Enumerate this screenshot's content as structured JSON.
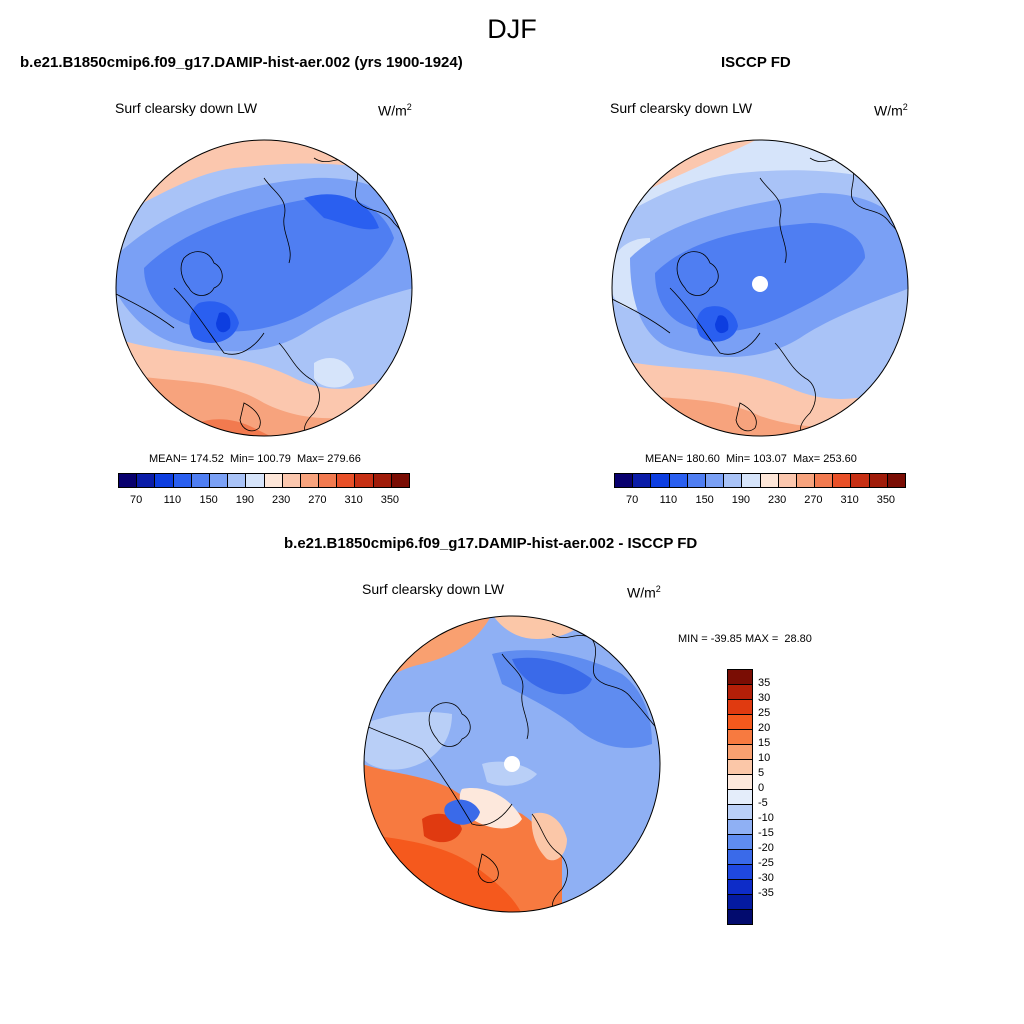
{
  "figure": {
    "title": "DJF"
  },
  "panels": [
    {
      "id": "model",
      "header": "b.e21.B1850cmip6.f09_g17.DAMIP-hist-aer.002 (yrs 1900-1924)",
      "variable": "Surf clearsky down LW",
      "units": "W/m",
      "units_exp": "2",
      "stats": "MEAN= 174.52  Min= 100.79  Max= 279.66"
    },
    {
      "id": "obs",
      "header": "ISCCP FD",
      "variable": "Surf clearsky down LW",
      "units": "W/m",
      "units_exp": "2",
      "stats": "MEAN= 180.60  Min= 103.07  Max= 253.60"
    },
    {
      "id": "diff",
      "header": "b.e21.B1850cmip6.f09_g17.DAMIP-hist-aer.002 - ISCCP FD",
      "variable": "Surf clearsky down LW",
      "units": "W/m",
      "units_exp": "2",
      "stats": "MIN = -39.85 MAX =  28.80"
    }
  ],
  "colorbars": {
    "absolute": {
      "colors": [
        "#08006e",
        "#0a1ca8",
        "#0d3ee0",
        "#2a5ff0",
        "#4f7ef2",
        "#7aa0f5",
        "#a9c3f7",
        "#d6e4fa",
        "#fde6d8",
        "#fbc7ae",
        "#f7a37d",
        "#f27a4f",
        "#e85028",
        "#c73014",
        "#a01c0a",
        "#7a0d04"
      ],
      "tick_labels": [
        "70",
        "110",
        "150",
        "190",
        "230",
        "270",
        "310",
        "350"
      ]
    },
    "difference": {
      "colors": [
        "#7a0d04",
        "#b31f08",
        "#e03a10",
        "#f5591d",
        "#f77a40",
        "#f9a070",
        "#fbc7a8",
        "#fde8dc",
        "#e4edfa",
        "#b9cff7",
        "#8fb0f4",
        "#5f8cf0",
        "#3a6ae9",
        "#1f48e0",
        "#0d2cc8",
        "#041aa0",
        "#020b6e"
      ],
      "tick_labels": [
        "35",
        "30",
        "25",
        "20",
        "15",
        "10",
        "5",
        "0",
        "-5",
        "-10",
        "-15",
        "-20",
        "-25",
        "-30",
        "-35"
      ]
    }
  }
}
